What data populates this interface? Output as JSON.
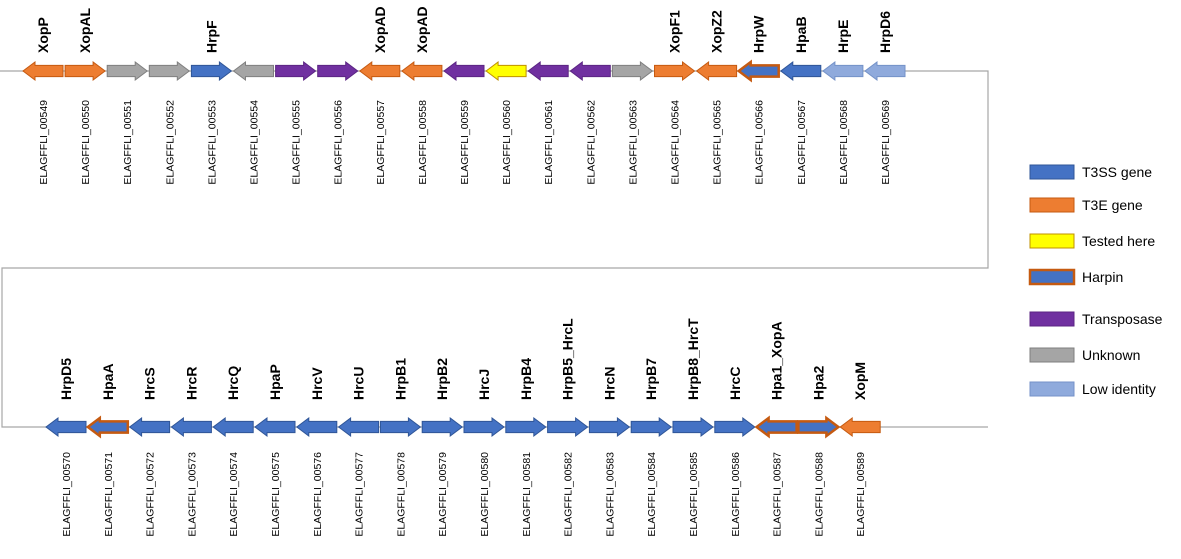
{
  "colors": {
    "T3SS": "#4472c4",
    "T3SS_border": "#2f5597",
    "T3E": "#ed7d31",
    "T3E_border": "#c55a11",
    "tested": "#ffff00",
    "tested_border": "#bf9000",
    "harpin_fill": "#4472c4",
    "harpin_border": "#c55a11",
    "transposase": "#7030a0",
    "transposase_border": "#5b2583",
    "unknown": "#a5a5a5",
    "unknown_border": "#7f7f7f",
    "low": "#8faadc",
    "low_border": "#7492c8",
    "line": "#a6a6a6"
  },
  "legend": [
    {
      "key": "T3SS",
      "label": "T3SS gene"
    },
    {
      "key": "T3E",
      "label": "T3E gene"
    },
    {
      "key": "tested",
      "label": "Tested here"
    },
    {
      "key": "harpin",
      "label": "Harpin"
    },
    {
      "key": "transposase",
      "label": "Transposase"
    },
    {
      "key": "unknown",
      "label": "Unknown"
    },
    {
      "key": "low",
      "label": "Low identity"
    }
  ],
  "rows": [
    {
      "genes": [
        {
          "id": "ELAGFFLI_00549",
          "name": "XopP",
          "type": "T3E",
          "dir": "left"
        },
        {
          "id": "ELAGFFLI_00550",
          "name": "XopAL",
          "type": "T3E",
          "dir": "right"
        },
        {
          "id": "ELAGFFLI_00551",
          "name": "",
          "type": "unknown",
          "dir": "right"
        },
        {
          "id": "ELAGFFLI_00552",
          "name": "",
          "type": "unknown",
          "dir": "right"
        },
        {
          "id": "ELAGFFLI_00553",
          "name": "HrpF",
          "type": "T3SS",
          "dir": "right"
        },
        {
          "id": "ELAGFFLI_00554",
          "name": "",
          "type": "unknown",
          "dir": "left"
        },
        {
          "id": "ELAGFFLI_00555",
          "name": "",
          "type": "transposase",
          "dir": "right"
        },
        {
          "id": "ELAGFFLI_00556",
          "name": "",
          "type": "transposase",
          "dir": "right"
        },
        {
          "id": "ELAGFFLI_00557",
          "name": "XopAD",
          "type": "T3E",
          "dir": "left"
        },
        {
          "id": "ELAGFFLI_00558",
          "name": "XopAD",
          "type": "T3E",
          "dir": "left"
        },
        {
          "id": "ELAGFFLI_00559",
          "name": "",
          "type": "transposase",
          "dir": "left"
        },
        {
          "id": "ELAGFFLI_00560",
          "name": "",
          "type": "tested",
          "dir": "left"
        },
        {
          "id": "ELAGFFLI_00561",
          "name": "",
          "type": "transposase",
          "dir": "left"
        },
        {
          "id": "ELAGFFLI_00562",
          "name": "",
          "type": "transposase",
          "dir": "left"
        },
        {
          "id": "ELAGFFLI_00563",
          "name": "",
          "type": "unknown",
          "dir": "right"
        },
        {
          "id": "ELAGFFLI_00564",
          "name": "XopF1",
          "type": "T3E",
          "dir": "right"
        },
        {
          "id": "ELAGFFLI_00565",
          "name": "XopZ2",
          "type": "T3E",
          "dir": "left"
        },
        {
          "id": "ELAGFFLI_00566",
          "name": "HrpW",
          "type": "harpin",
          "dir": "left"
        },
        {
          "id": "ELAGFFLI_00567",
          "name": "HpaB",
          "type": "T3SS",
          "dir": "left"
        },
        {
          "id": "ELAGFFLI_00568",
          "name": "HrpE",
          "type": "low",
          "dir": "left"
        },
        {
          "id": "ELAGFFLI_00569",
          "name": "HrpD6",
          "type": "low",
          "dir": "left"
        }
      ]
    },
    {
      "genes": [
        {
          "id": "ELAGFFLI_00570",
          "name": "HrpD5",
          "type": "T3SS",
          "dir": "left"
        },
        {
          "id": "ELAGFFLI_00571",
          "name": "HpaA",
          "type": "harpin",
          "dir": "left"
        },
        {
          "id": "ELAGFFLI_00572",
          "name": "HrcS",
          "type": "T3SS",
          "dir": "left"
        },
        {
          "id": "ELAGFFLI_00573",
          "name": "HrcR",
          "type": "T3SS",
          "dir": "left"
        },
        {
          "id": "ELAGFFLI_00574",
          "name": "HrcQ",
          "type": "T3SS",
          "dir": "left"
        },
        {
          "id": "ELAGFFLI_00575",
          "name": "HpaP",
          "type": "T3SS",
          "dir": "left"
        },
        {
          "id": "ELAGFFLI_00576",
          "name": "HrcV",
          "type": "T3SS",
          "dir": "left"
        },
        {
          "id": "ELAGFFLI_00577",
          "name": "HrcU",
          "type": "T3SS",
          "dir": "left"
        },
        {
          "id": "ELAGFFLI_00578",
          "name": "HrpB1",
          "type": "T3SS",
          "dir": "right"
        },
        {
          "id": "ELAGFFLI_00579",
          "name": "HrpB2",
          "type": "T3SS",
          "dir": "right"
        },
        {
          "id": "ELAGFFLI_00580",
          "name": "HrcJ",
          "type": "T3SS",
          "dir": "right"
        },
        {
          "id": "ELAGFFLI_00581",
          "name": "HrpB4",
          "type": "T3SS",
          "dir": "right"
        },
        {
          "id": "ELAGFFLI_00582",
          "name": "HrpB5_HrcL",
          "type": "T3SS",
          "dir": "right"
        },
        {
          "id": "ELAGFFLI_00583",
          "name": "HrcN",
          "type": "T3SS",
          "dir": "right"
        },
        {
          "id": "ELAGFFLI_00584",
          "name": "HrpB7",
          "type": "T3SS",
          "dir": "right"
        },
        {
          "id": "ELAGFFLI_00585",
          "name": "HrpB8_HrcT",
          "type": "T3SS",
          "dir": "right"
        },
        {
          "id": "ELAGFFLI_00586",
          "name": "HrcC",
          "type": "T3SS",
          "dir": "right"
        },
        {
          "id": "ELAGFFLI_00587",
          "name": "Hpa1_XopA",
          "type": "harpin",
          "dir": "left"
        },
        {
          "id": "ELAGFFLI_00588",
          "name": "Hpa2",
          "type": "harpin",
          "dir": "right"
        },
        {
          "id": "ELAGFFLI_00589",
          "name": "XopM",
          "type": "T3E",
          "dir": "left"
        }
      ]
    }
  ]
}
